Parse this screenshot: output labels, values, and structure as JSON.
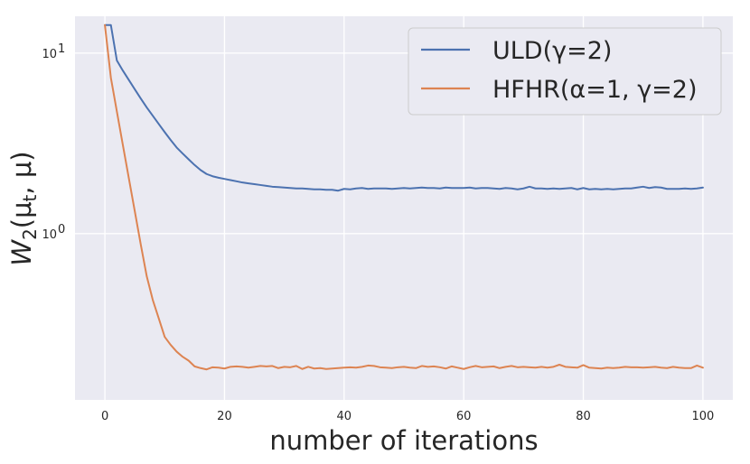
{
  "chart_data": {
    "type": "line",
    "title": "",
    "xlabel": "number of iterations",
    "ylabel_parts": {
      "main": "W",
      "sub1": "2",
      "open": "(μ",
      "sub2": "t",
      "close": ", μ)"
    },
    "xlim": [
      -5,
      105
    ],
    "ylim": [
      0.12,
      16
    ],
    "yscale": "log",
    "grid": true,
    "legend_position": "top-right",
    "x_ticks": [
      0,
      20,
      40,
      60,
      80,
      100
    ],
    "y_ticks": [
      {
        "value": 1,
        "base": "10",
        "exp": "0"
      },
      {
        "value": 10,
        "base": "10",
        "exp": "1"
      }
    ],
    "series": [
      {
        "name": "ULD(γ=2)",
        "color": "#4c72b0",
        "x": [
          0,
          1,
          2,
          3,
          4,
          5,
          6,
          7,
          8,
          9,
          10,
          11,
          12,
          13,
          14,
          15,
          16,
          17,
          18,
          19,
          20,
          21,
          22,
          23,
          24,
          25,
          26,
          27,
          28,
          29,
          30,
          31,
          32,
          33,
          34,
          35,
          36,
          37,
          38,
          39,
          40,
          41,
          42,
          43,
          44,
          45,
          46,
          47,
          48,
          49,
          50,
          51,
          52,
          53,
          54,
          55,
          56,
          57,
          58,
          59,
          60,
          61,
          62,
          63,
          64,
          65,
          66,
          67,
          68,
          69,
          70,
          71,
          72,
          73,
          74,
          75,
          76,
          77,
          78,
          79,
          80,
          81,
          82,
          83,
          84,
          85,
          86,
          87,
          88,
          89,
          90,
          91,
          92,
          93,
          94,
          95,
          96,
          97,
          98,
          99,
          100
        ],
        "y": [
          14.3,
          14.3,
          9.1,
          8.0,
          7.1,
          6.3,
          5.6,
          5.0,
          4.5,
          4.05,
          3.65,
          3.3,
          3.0,
          2.78,
          2.58,
          2.4,
          2.25,
          2.14,
          2.08,
          2.04,
          2.01,
          1.98,
          1.95,
          1.92,
          1.9,
          1.88,
          1.86,
          1.84,
          1.82,
          1.81,
          1.8,
          1.79,
          1.78,
          1.78,
          1.77,
          1.76,
          1.76,
          1.75,
          1.75,
          1.73,
          1.77,
          1.76,
          1.78,
          1.79,
          1.77,
          1.78,
          1.78,
          1.78,
          1.77,
          1.78,
          1.79,
          1.78,
          1.79,
          1.8,
          1.79,
          1.79,
          1.78,
          1.8,
          1.79,
          1.79,
          1.79,
          1.8,
          1.78,
          1.79,
          1.79,
          1.78,
          1.77,
          1.79,
          1.78,
          1.76,
          1.78,
          1.82,
          1.78,
          1.78,
          1.77,
          1.78,
          1.77,
          1.78,
          1.79,
          1.76,
          1.79,
          1.76,
          1.77,
          1.76,
          1.77,
          1.76,
          1.77,
          1.78,
          1.78,
          1.8,
          1.82,
          1.79,
          1.81,
          1.8,
          1.77,
          1.77,
          1.77,
          1.78,
          1.77,
          1.78,
          1.8
        ]
      },
      {
        "name": "HFHR(α=1, γ=2)",
        "color": "#dd8452",
        "x": [
          0,
          1,
          2,
          3,
          4,
          5,
          6,
          7,
          8,
          9,
          10,
          11,
          12,
          13,
          14,
          15,
          16,
          17,
          18,
          19,
          20,
          21,
          22,
          23,
          24,
          25,
          26,
          27,
          28,
          29,
          30,
          31,
          32,
          33,
          34,
          35,
          36,
          37,
          38,
          39,
          40,
          41,
          42,
          43,
          44,
          45,
          46,
          47,
          48,
          49,
          50,
          51,
          52,
          53,
          54,
          55,
          56,
          57,
          58,
          59,
          60,
          61,
          62,
          63,
          64,
          65,
          66,
          67,
          68,
          69,
          70,
          71,
          72,
          73,
          74,
          75,
          76,
          77,
          78,
          79,
          80,
          81,
          82,
          83,
          84,
          85,
          86,
          87,
          88,
          89,
          90,
          91,
          92,
          93,
          94,
          95,
          96,
          97,
          98,
          99,
          100
        ],
        "y": [
          14.3,
          7.3,
          4.75,
          3.1,
          2.03,
          1.33,
          0.87,
          0.58,
          0.43,
          0.34,
          0.268,
          0.242,
          0.222,
          0.208,
          0.198,
          0.184,
          0.18,
          0.177,
          0.182,
          0.181,
          0.179,
          0.183,
          0.184,
          0.183,
          0.181,
          0.183,
          0.185,
          0.184,
          0.185,
          0.18,
          0.183,
          0.182,
          0.185,
          0.178,
          0.183,
          0.179,
          0.18,
          0.178,
          0.179,
          0.18,
          0.181,
          0.182,
          0.181,
          0.183,
          0.186,
          0.185,
          0.182,
          0.181,
          0.18,
          0.182,
          0.183,
          0.181,
          0.18,
          0.185,
          0.183,
          0.184,
          0.182,
          0.179,
          0.184,
          0.181,
          0.178,
          0.182,
          0.185,
          0.182,
          0.183,
          0.184,
          0.18,
          0.183,
          0.185,
          0.182,
          0.183,
          0.182,
          0.181,
          0.183,
          0.181,
          0.183,
          0.188,
          0.183,
          0.182,
          0.181,
          0.187,
          0.181,
          0.18,
          0.179,
          0.181,
          0.18,
          0.181,
          0.183,
          0.182,
          0.182,
          0.181,
          0.182,
          0.183,
          0.181,
          0.18,
          0.183,
          0.181,
          0.18,
          0.18,
          0.186,
          0.181
        ]
      }
    ]
  }
}
